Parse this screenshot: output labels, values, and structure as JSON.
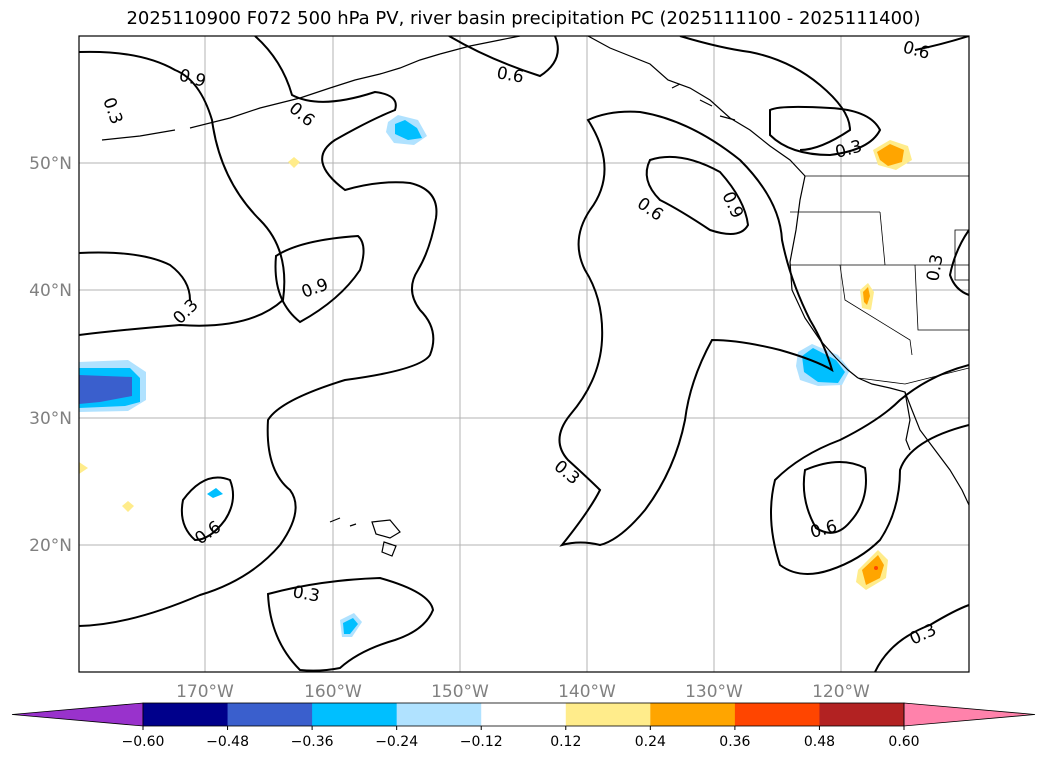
{
  "title": "2025110900 F072 500 hPa PV, river basin precipitation PC (2025111100 - 2025111400)",
  "lat_labels": [
    "50°N",
    "40°N",
    "30°N",
    "20°N"
  ],
  "lon_labels": [
    "170°W",
    "160°W",
    "150°W",
    "140°W",
    "130°W",
    "120°W"
  ],
  "contour_labels": [
    "0.9",
    "0.3",
    "0.6",
    "0.6",
    "0.3",
    "0.9",
    "0.3",
    "0.6",
    "0.9",
    "0.3",
    "0.6",
    "0.3",
    "0.6",
    "0.3",
    "0.6",
    "0.3"
  ],
  "colorbar": {
    "ticks": [
      "−0.60",
      "−0.48",
      "−0.36",
      "−0.24",
      "−0.12",
      "0.12",
      "0.24",
      "0.36",
      "0.48",
      "0.60"
    ],
    "colors": [
      "#9932cc",
      "#00008b",
      "#3a5fcd",
      "#00bfff",
      "#b0e2ff",
      "#ffffff",
      "#ffec8b",
      "#ffa500",
      "#ff4500",
      "#b22222",
      "#ff82ab"
    ]
  },
  "shading_colors": {
    "light_blue": "#b0e2ff",
    "blue": "#00bfff",
    "royal_blue": "#3a5fcd",
    "yellow": "#ffec8b",
    "orange": "#ffa500",
    "red_orange": "#ff4500"
  }
}
